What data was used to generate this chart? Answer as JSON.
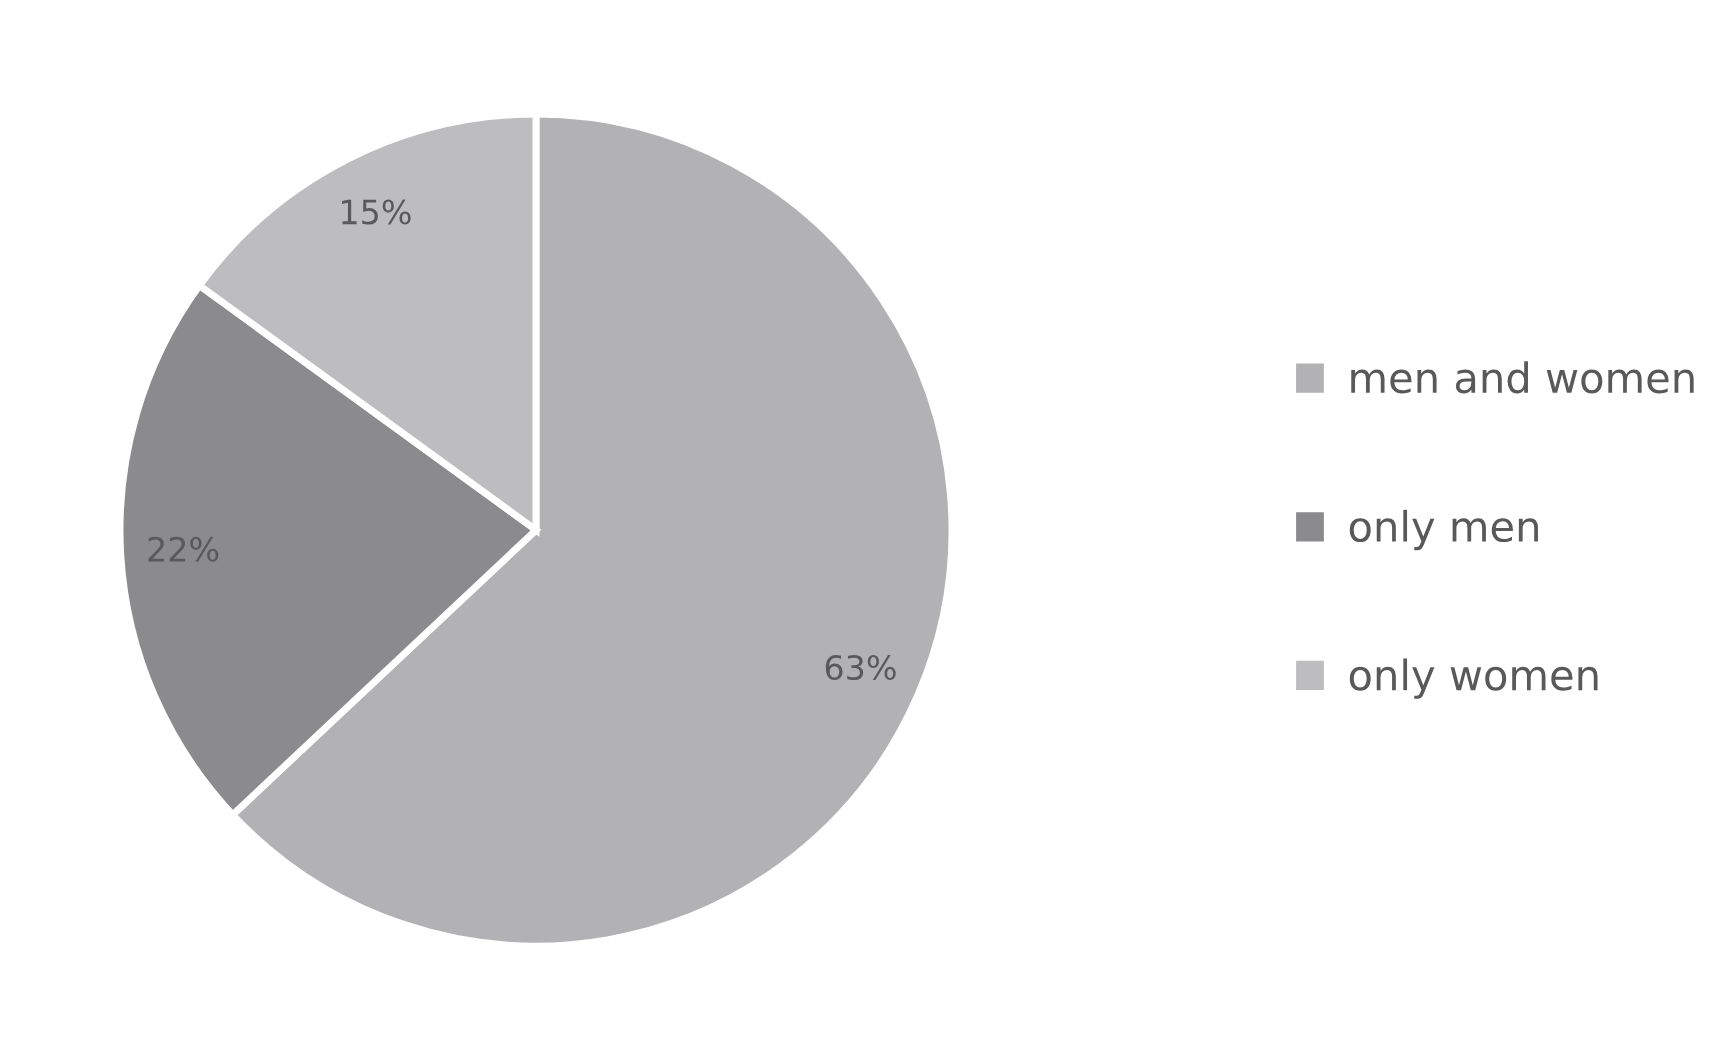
{
  "chart_data": {
    "type": "pie",
    "categories": [
      "men and women",
      "only men",
      "only women"
    ],
    "values": [
      63,
      22,
      15
    ],
    "value_labels": [
      "63%",
      "22%",
      "15%"
    ],
    "colors": [
      "#b2b2b4",
      "#8b8b8e",
      "#bdbdbf"
    ],
    "legend": "right"
  }
}
